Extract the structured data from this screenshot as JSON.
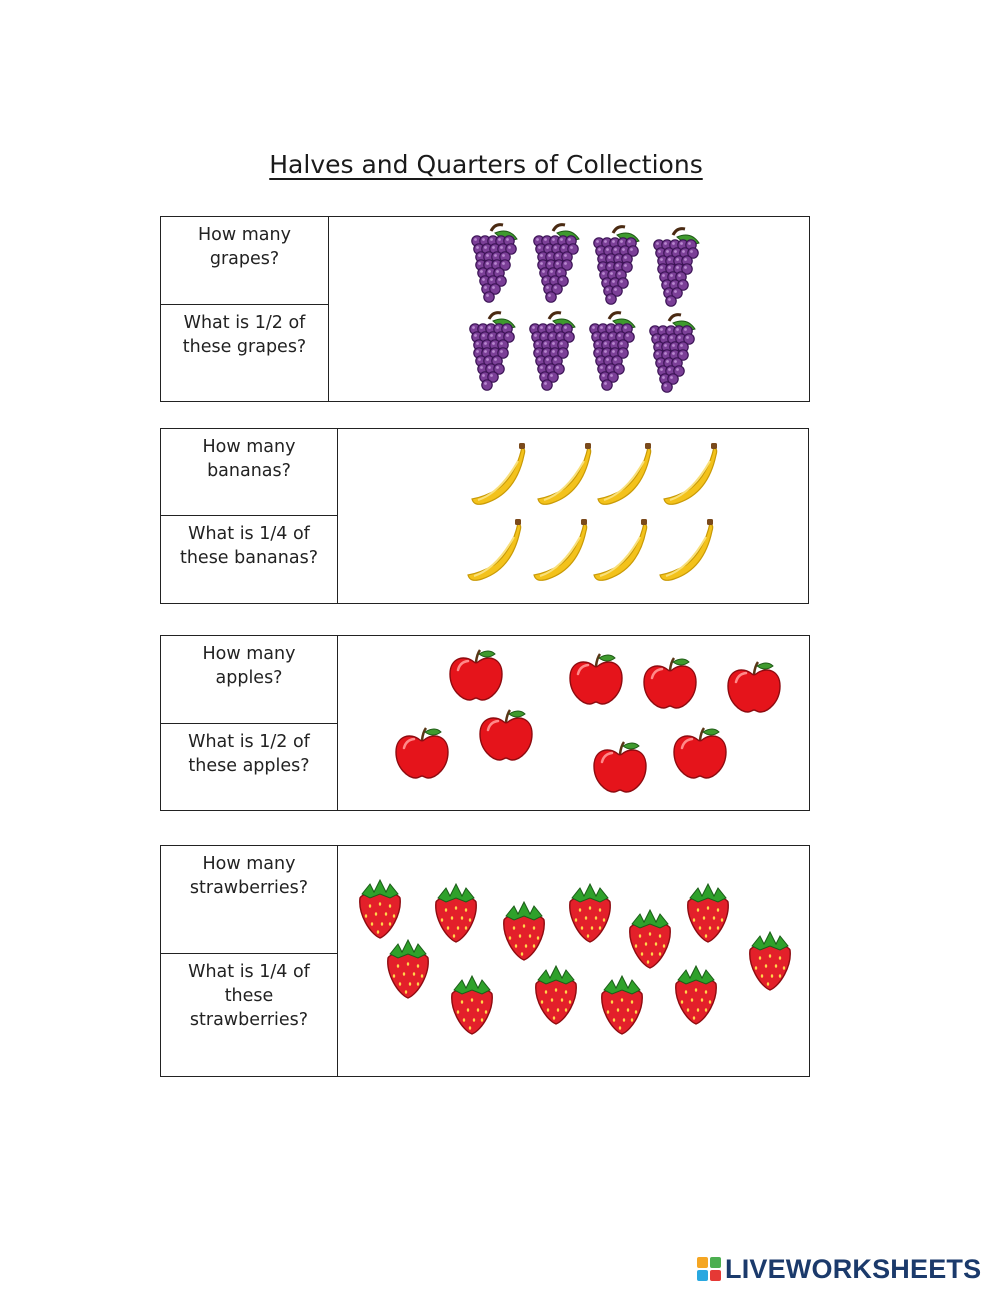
{
  "title": "Halves and Quarters of Collections",
  "sections": [
    {
      "fruit": "grape",
      "q1": [
        "How many",
        "grapes?"
      ],
      "q2": [
        "What is 1/2 of",
        "these grapes?"
      ],
      "count": 8
    },
    {
      "fruit": "banana",
      "q1": [
        "How many",
        "bananas?"
      ],
      "q2": [
        "What is 1/4 of",
        "these bananas?"
      ],
      "count": 8
    },
    {
      "fruit": "apple",
      "q1": [
        "How many",
        "apples?"
      ],
      "q2": [
        "What is 1/2 of",
        "these apples?"
      ],
      "count": 8
    },
    {
      "fruit": "strawberry",
      "q1": [
        "How many",
        "strawberries?"
      ],
      "q2": [
        "What is 1/4 of",
        "these",
        "strawberries?"
      ],
      "count": 12
    }
  ],
  "logo": {
    "text": "LIVEWORKSHEETS",
    "mark_letters": [
      "L",
      "I",
      "V",
      "E"
    ]
  },
  "colors": {
    "grape": "#7b3f97",
    "banana": "#f3c21b",
    "apple": "#e5141b",
    "strawberry": "#e3202a",
    "leaf": "#3f9a2e",
    "logo": "#1b3a6b"
  }
}
